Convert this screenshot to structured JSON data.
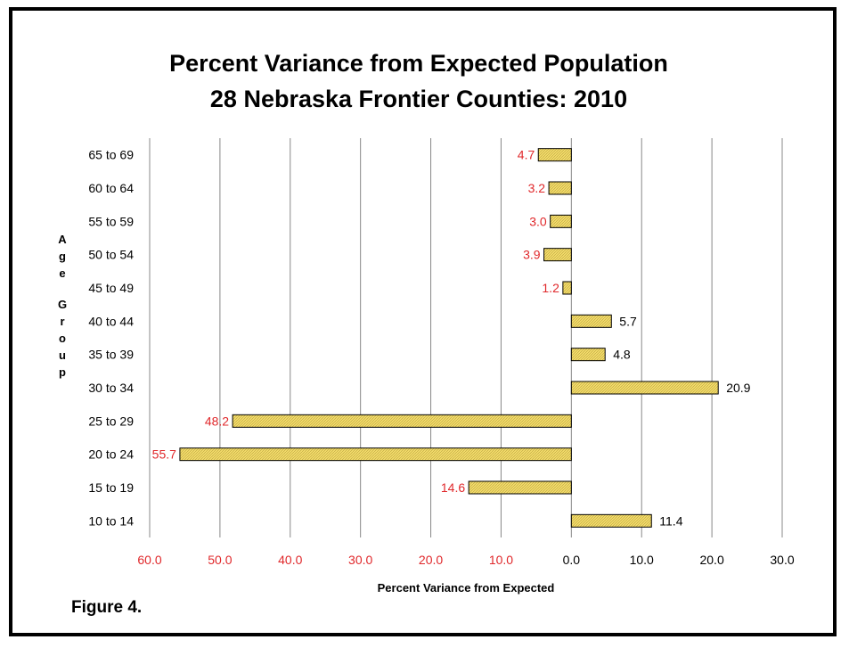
{
  "figure_label": "Figure 4.",
  "chart_data": {
    "type": "bar",
    "orientation": "horizontal",
    "title": [
      "Percent Variance from Expected Population",
      "28 Nebraska Frontier Counties: 2010"
    ],
    "xlabel": "Percent Variance from Expected",
    "ylabel": "Age Group",
    "categories": [
      "65 to 69",
      "60 to 64",
      "55 to 59",
      "50 to 54",
      "45 to 49",
      "40 to 44",
      "35 to 39",
      "30 to 34",
      "25 to 29",
      "20 to 24",
      "15 to 19",
      "10 to 14"
    ],
    "values": [
      -4.7,
      -3.2,
      -3.0,
      -3.9,
      -1.2,
      5.7,
      4.8,
      20.9,
      -48.2,
      -55.7,
      -14.6,
      11.4
    ],
    "data_labels": [
      "4.7",
      "3.2",
      "3.0",
      "3.9",
      "1.2",
      "5.7",
      "4.8",
      "20.9",
      "48.2",
      "55.7",
      "14.6",
      "11.4"
    ],
    "x_ticks": [
      -60,
      -50,
      -40,
      -30,
      -20,
      -10,
      0,
      10,
      20,
      30
    ],
    "x_tick_labels": [
      "60.0",
      "50.0",
      "40.0",
      "30.0",
      "20.0",
      "10.0",
      "0.0",
      "10.0",
      "20.0",
      "30.0"
    ],
    "xlim": [
      -60,
      30
    ],
    "grid": "vertical",
    "colors": {
      "bar_fill": "#f3dc6a",
      "bar_stroke": "#000000",
      "negative_label": "#e0282b",
      "positive_label": "#000000",
      "grid": "#888888"
    }
  }
}
